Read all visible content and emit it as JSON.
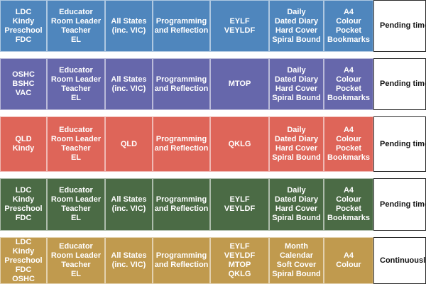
{
  "rows": [
    {
      "color": "#4F86BD",
      "cells": [
        "LDC\nKindy\nPreschool\nFDC",
        "Educator\nRoom Leader\nTeacher\nEL",
        "All States\n(inc. VIC)",
        "Programming\nand Reflection",
        "EYLF\nVEYLDF",
        "Daily\nDated Diary\nHard Cover\nSpiral Bound",
        "A4\nColour\nPocket\nBookmarks",
        "Pending time\nthe year, only\ncover reprinted"
      ]
    },
    {
      "color": "#6667AB",
      "cells": [
        "OSHC\nBSHC\nVAC",
        "Educator\nRoom Leader\nTeacher\nEL",
        "All States\n(inc. VIC)",
        "Programming\nand Reflection",
        "MTOP",
        "Daily\nDated Diary\nHard Cover\nSpiral Bound",
        "A4\nColour\nPocket\nBookmarks",
        "Pending time\nthe year"
      ]
    },
    {
      "color": "#DE6559",
      "cells": [
        "QLD\nKindy",
        "Educator\nRoom Leader\nTeacher\nEL",
        "QLD",
        "Programming\nand Reflection",
        "QKLG",
        "Daily\nDated Diary\nHard Cover\nSpiral Bound",
        "A4\nColour\nPocket\nBookmarks",
        "Pending time\nthe year"
      ]
    },
    {
      "color": "#4B6B45",
      "cells": [
        "LDC\nKindy\nPreschool\nFDC",
        "Educator\nRoom Leader\nTeacher\nEL",
        "All States\n(inc. VIC)",
        "Programming\nand Reflection",
        "EYLF\nVEYLDF",
        "Daily\nDated Diary\nHard Cover\nSpiral Bound",
        "A4\nColour\nPocket\nBookmarks",
        "Pending time\nthe year"
      ]
    },
    {
      "color": "#C09A4E",
      "cells": [
        "LDC\nKindy\nPreschool\nFDC\nOSHC",
        "Educator\nRoom Leader\nTeacher\nEL",
        "All States\n(inc. VIC)",
        "Programming\nand Reflection",
        "EYLF\nVEYLDF\nMTOP\nQKLG",
        "Month\nCalendar\nSoft Cover\nSpiral Bound",
        "A4\nColour",
        "Continuously\nreprinted, ema\nfor restock\ndates"
      ]
    }
  ]
}
